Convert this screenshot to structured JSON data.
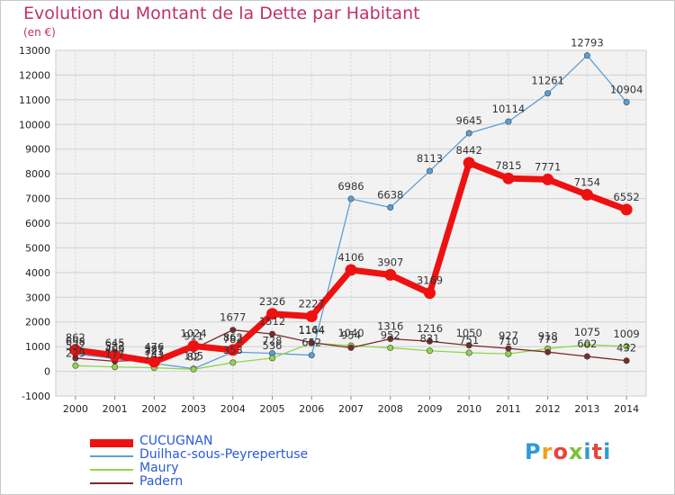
{
  "title": "Evolution du Montant de la Dette par Habitant",
  "unit": "(en €)",
  "logo": {
    "text": "Proxiti",
    "colors": [
      "#2f9bd8",
      "#f0a020",
      "#e8443a",
      "#7cc23a",
      "#2f9bd8",
      "#e8443a",
      "#2f9bd8"
    ]
  },
  "chart_data": {
    "type": "line",
    "x": [
      2000,
      2001,
      2002,
      2003,
      2004,
      2005,
      2006,
      2007,
      2008,
      2009,
      2010,
      2011,
      2012,
      2013,
      2014
    ],
    "xlabel": "",
    "ylabel": "",
    "ylim": [
      -1000,
      13000
    ],
    "yticks": [
      -1000,
      0,
      1000,
      2000,
      3000,
      4000,
      5000,
      6000,
      7000,
      8000,
      9000,
      10000,
      11000,
      12000,
      13000
    ],
    "grid": true,
    "legend_position": "bottom-left",
    "series": [
      {
        "name": "CUCUGNAN",
        "color": "#ee1111",
        "values": [
          862,
          645,
          387,
          1024,
          862,
          2326,
          2227,
          4106,
          3907,
          3169,
          8442,
          7815,
          7771,
          7154,
          6552
        ]
      },
      {
        "name": "Duilhac-sous-Peyrepertuse",
        "color": "#5a9fd6",
        "values": [
          698,
          522,
          321,
          105,
          782,
          728,
          652,
          6986,
          6638,
          8113,
          9645,
          10114,
          11261,
          12793,
          10904
        ]
      },
      {
        "name": "Maury",
        "color": "#8ed64c",
        "values": [
          229,
          177,
          143,
          82,
          353,
          536,
          1144,
          1040,
          952,
          831,
          751,
          710,
          918,
          1075,
          1009
        ]
      },
      {
        "name": "Padern",
        "color": "#7a2a2a",
        "values": [
          532,
          409,
          476,
          911,
          1677,
          1512,
          1164,
          954,
          1316,
          1216,
          1050,
          927,
          779,
          602,
          432
        ]
      }
    ]
  }
}
